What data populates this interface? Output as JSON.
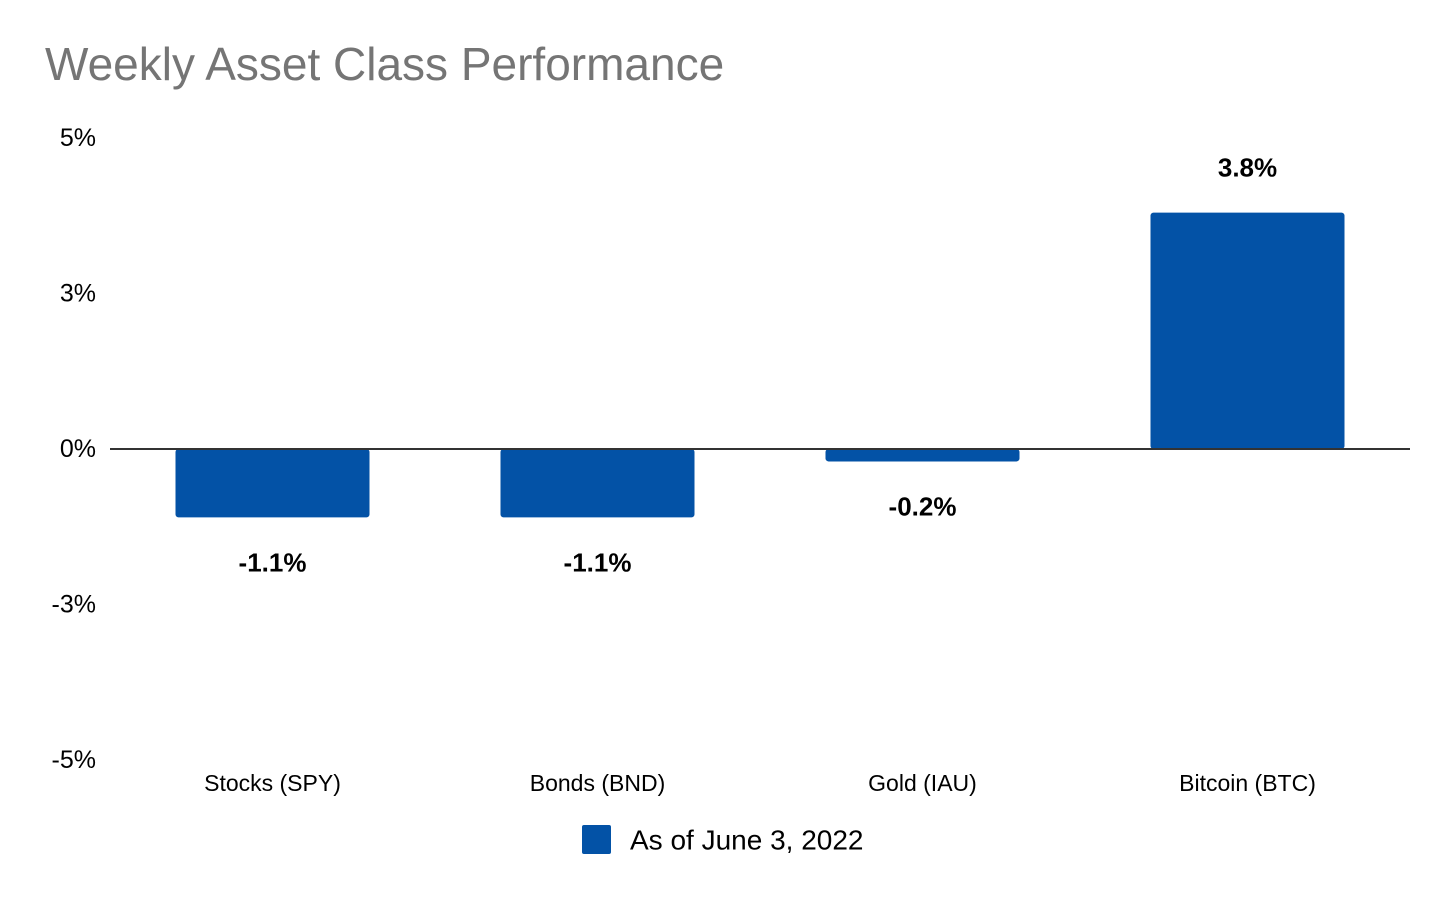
{
  "chart_data": {
    "type": "bar",
    "title": "Weekly Asset Class Performance",
    "xlabel": "",
    "ylabel": "",
    "categories": [
      "Stocks (SPY)",
      "Bonds (BND)",
      "Gold (IAU)",
      "Bitcoin (BTC)"
    ],
    "series": [
      {
        "name": "As of June 3, 2022",
        "values": [
          -1.1,
          -1.1,
          -0.2,
          3.8
        ],
        "labels": [
          "-1.1%",
          "-1.1%",
          "-0.2%",
          "3.8%"
        ],
        "color": "#0352A6"
      }
    ],
    "y_ticks": [
      5,
      2.5,
      0,
      -2.5,
      -5
    ],
    "y_tick_labels": [
      "5%",
      "3%",
      "0%",
      "-3%",
      "-5%"
    ],
    "ylim": [
      -5,
      5
    ],
    "grid": false,
    "legend_position": "bottom"
  }
}
